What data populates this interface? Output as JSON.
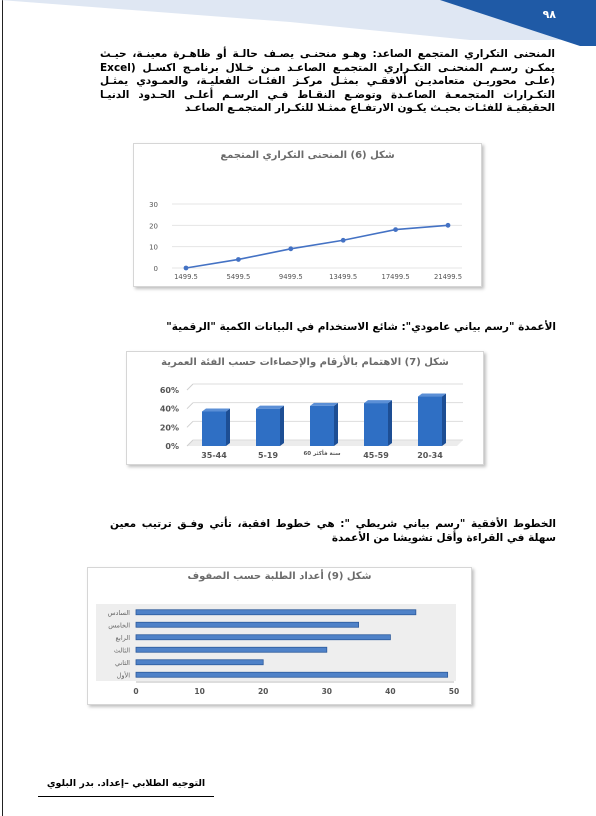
{
  "page": {
    "number": "٩٨",
    "paragraph1": "المنحنى التكراري المتجمع الصاعد: وهـو منحنـى يصـف حالـة أو ظاهـرة معينـة، حيـث يمكـن رسـم المنحنـى التكـراري المتجمـع الصاعـد مـن خـلال برنامـج اكسـل (Excel (علـى محوريـن متعامديـن ألافقـي بمثـل مركـز الفئـات الفعليـة، والعمـودي يمثـل التكـرارات المتجمعـة الصاعـدة وتوضـع النقـاط فـي الرسـم أعلـى الحـدود الدنيـا الحقيقيـة للفئـات بحيـث يكـون الارتفـاع ممثـلا للتكـرار المتجمـع الصاعـد",
    "paragraph2": "الأعمدة \"رسم بياني عامودي\": شائع الاستخدام في البيانات الكمية \"الرقمية\"",
    "paragraph3": "الخطوط الأفقية \"رسم بياني شريطي \": هي خطوط افقية، تأتي وفـق ترتيب معين سهلة في القراءة وأقل تشويشا من الأعمدة",
    "footer": "التوجيه الطلابي –إعداد. بدر البلوي"
  },
  "colors": {
    "header_blue": "#1f5aa6",
    "line_blue": "#4472c4",
    "bar_blue": "#2f6fc4",
    "hbar_blue": "#4f82c8"
  },
  "chart_data": [
    {
      "type": "line",
      "title": "شكل (6) المنحنى التكراري المتجمع",
      "categories": [
        "1499.5",
        "5499.5",
        "9499.5",
        "13499.5",
        "17499.5",
        "21499.5"
      ],
      "values": [
        0,
        4,
        9,
        13,
        18,
        20
      ],
      "ylim": [
        0,
        30
      ],
      "yticks": [
        "0",
        "10",
        "20",
        "30"
      ],
      "grid": true
    },
    {
      "type": "bar",
      "title": "شكل (7) الاهتمام بالأرقام والإحصاءات حسب الفئة العمرية",
      "categories": [
        "35-44",
        "5-19",
        "60 سنة فأكثر",
        "45-59",
        "20-34"
      ],
      "values": [
        37,
        40,
        43,
        46,
        53
      ],
      "ylim": [
        0,
        60
      ],
      "yticks": [
        "0%",
        "20%",
        "40%",
        "60%"
      ],
      "style": "3d"
    },
    {
      "type": "bar",
      "orientation": "horizontal",
      "title": "شكل (9) أعداد الطلبة حسب الصفوف",
      "categories": [
        "السادس",
        "الخامس",
        "الرابع",
        "الثالث",
        "الثاني",
        "الأول"
      ],
      "values": [
        44,
        35,
        40,
        30,
        20,
        49
      ],
      "xlim": [
        0,
        50
      ],
      "xticks": [
        "0",
        "10",
        "20",
        "30",
        "40",
        "50"
      ]
    }
  ]
}
